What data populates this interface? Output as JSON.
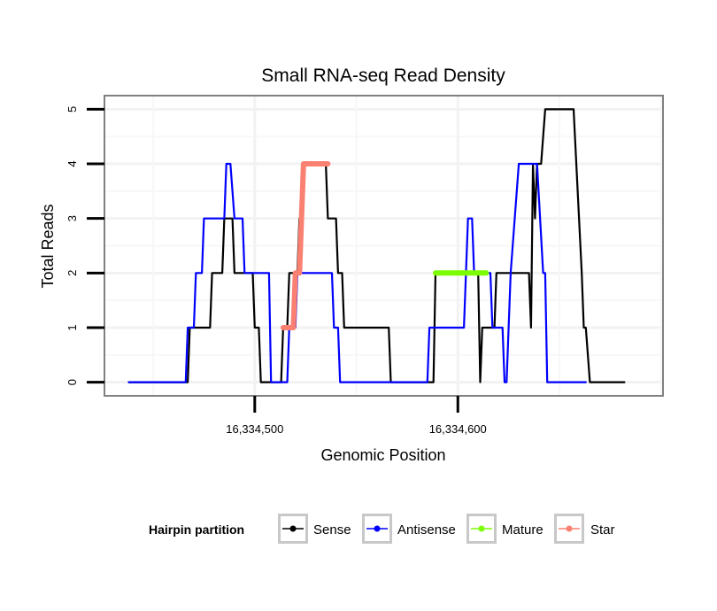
{
  "chart_data": {
    "type": "line",
    "title": "Small RNA-seq Read Density",
    "xlabel": "Genomic Position",
    "ylabel": "Total Reads",
    "xlim": [
      16334426,
      16334701
    ],
    "ylim": [
      -0.25,
      5.25
    ],
    "x_ticks": [
      16334500,
      16334600
    ],
    "x_tick_labels": [
      "16,334,500",
      "16,334,600"
    ],
    "y_ticks": [
      0,
      1,
      2,
      3,
      4,
      5
    ],
    "y_tick_labels": [
      "0",
      "1",
      "2",
      "3",
      "4",
      "5"
    ],
    "grid": true,
    "legend": {
      "title": "Hairpin partition",
      "position": "bottom",
      "entries": [
        {
          "name": "Sense",
          "color": "#000000"
        },
        {
          "name": "Antisense",
          "color": "#0000ff"
        },
        {
          "name": "Mature",
          "color": "#7cfc00"
        },
        {
          "name": "Star",
          "color": "#fa8072"
        }
      ]
    },
    "series": [
      {
        "name": "Sense",
        "color": "#000000",
        "points": [
          [
            16334438,
            0
          ],
          [
            16334467,
            0
          ],
          [
            16334468,
            1
          ],
          [
            16334478,
            1
          ],
          [
            16334479,
            2
          ],
          [
            16334484,
            2
          ],
          [
            16334485,
            3
          ],
          [
            16334489,
            3
          ],
          [
            16334490,
            2
          ],
          [
            16334499,
            2
          ],
          [
            16334500,
            1
          ],
          [
            16334502,
            1
          ],
          [
            16334503,
            0
          ],
          [
            16334513,
            0
          ],
          [
            16334514,
            1
          ],
          [
            16334516,
            1
          ],
          [
            16334517,
            2
          ],
          [
            16334521,
            2
          ],
          [
            16334522,
            3
          ],
          [
            16334523,
            3
          ],
          [
            16334524,
            4
          ],
          [
            16334535,
            4
          ],
          [
            16334536,
            3
          ],
          [
            16334540,
            3
          ],
          [
            16334541,
            2
          ],
          [
            16334543,
            2
          ],
          [
            16334544,
            1
          ],
          [
            16334566,
            1
          ],
          [
            16334567,
            0
          ],
          [
            16334588,
            0
          ],
          [
            16334589,
            2
          ],
          [
            16334610,
            2
          ],
          [
            16334611,
            0
          ],
          [
            16334612,
            1
          ],
          [
            16334618,
            1
          ],
          [
            16334619,
            2
          ],
          [
            16334635,
            2
          ],
          [
            16334636,
            1
          ],
          [
            16334637,
            4
          ],
          [
            16334638,
            3
          ],
          [
            16334639,
            4
          ],
          [
            16334641,
            4
          ],
          [
            16334643,
            5
          ],
          [
            16334657,
            5
          ],
          [
            16334661,
            2
          ],
          [
            16334662,
            1
          ],
          [
            16334663,
            1
          ],
          [
            16334665,
            0
          ],
          [
            16334682,
            0
          ]
        ]
      },
      {
        "name": "Antisense",
        "color": "#0000ff",
        "points": [
          [
            16334438,
            0
          ],
          [
            16334466,
            0
          ],
          [
            16334467,
            1
          ],
          [
            16334470,
            1
          ],
          [
            16334471,
            2
          ],
          [
            16334474,
            2
          ],
          [
            16334475,
            3
          ],
          [
            16334485,
            3
          ],
          [
            16334486,
            4
          ],
          [
            16334488,
            4
          ],
          [
            16334490,
            3
          ],
          [
            16334494,
            3
          ],
          [
            16334495,
            2
          ],
          [
            16334507,
            2
          ],
          [
            16334508,
            0
          ],
          [
            16334516,
            0
          ],
          [
            16334517,
            1
          ],
          [
            16334520,
            1
          ],
          [
            16334521,
            2
          ],
          [
            16334538,
            2
          ],
          [
            16334539,
            1
          ],
          [
            16334541,
            1
          ],
          [
            16334542,
            0
          ],
          [
            16334585,
            0
          ],
          [
            16334586,
            1
          ],
          [
            16334603,
            1
          ],
          [
            16334605,
            3
          ],
          [
            16334607,
            3
          ],
          [
            16334608,
            2
          ],
          [
            16334616,
            2
          ],
          [
            16334617,
            1
          ],
          [
            16334622,
            1
          ],
          [
            16334623,
            0
          ],
          [
            16334624,
            0
          ],
          [
            16334625,
            1
          ],
          [
            16334626,
            2
          ],
          [
            16334630,
            4
          ],
          [
            16334639,
            4
          ],
          [
            16334642,
            2
          ],
          [
            16334643,
            2
          ],
          [
            16334644,
            0
          ],
          [
            16334663,
            0
          ]
        ]
      },
      {
        "name": "Mature",
        "color": "#7cfc00",
        "points": [
          [
            16334589,
            2
          ],
          [
            16334614,
            2
          ]
        ]
      },
      {
        "name": "Star",
        "color": "#fa8072",
        "points": [
          [
            16334514,
            1
          ],
          [
            16334519,
            1
          ],
          [
            16334520,
            2
          ],
          [
            16334522,
            2
          ],
          [
            16334523,
            3
          ],
          [
            16334524,
            4
          ],
          [
            16334536,
            4
          ]
        ]
      }
    ]
  }
}
